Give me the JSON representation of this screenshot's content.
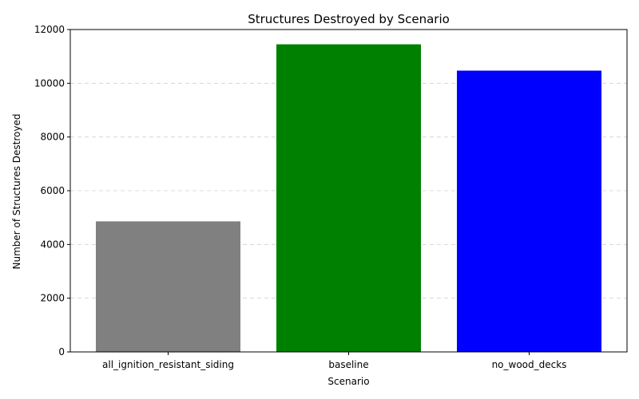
{
  "chart_data": {
    "type": "bar",
    "title": "Structures Destroyed by Scenario",
    "xlabel": "Scenario",
    "ylabel": "Number of Structures Destroyed",
    "categories": [
      "all_ignition_resistant_siding",
      "baseline",
      "no_wood_decks"
    ],
    "values": [
      4860,
      11450,
      10470
    ],
    "colors": [
      "#808080",
      "#008000",
      "#0000ff"
    ],
    "ylim": [
      0,
      12000
    ],
    "yticks": [
      0,
      2000,
      4000,
      6000,
      8000,
      10000,
      12000
    ],
    "grid": "y-dashed",
    "legend": "none"
  }
}
